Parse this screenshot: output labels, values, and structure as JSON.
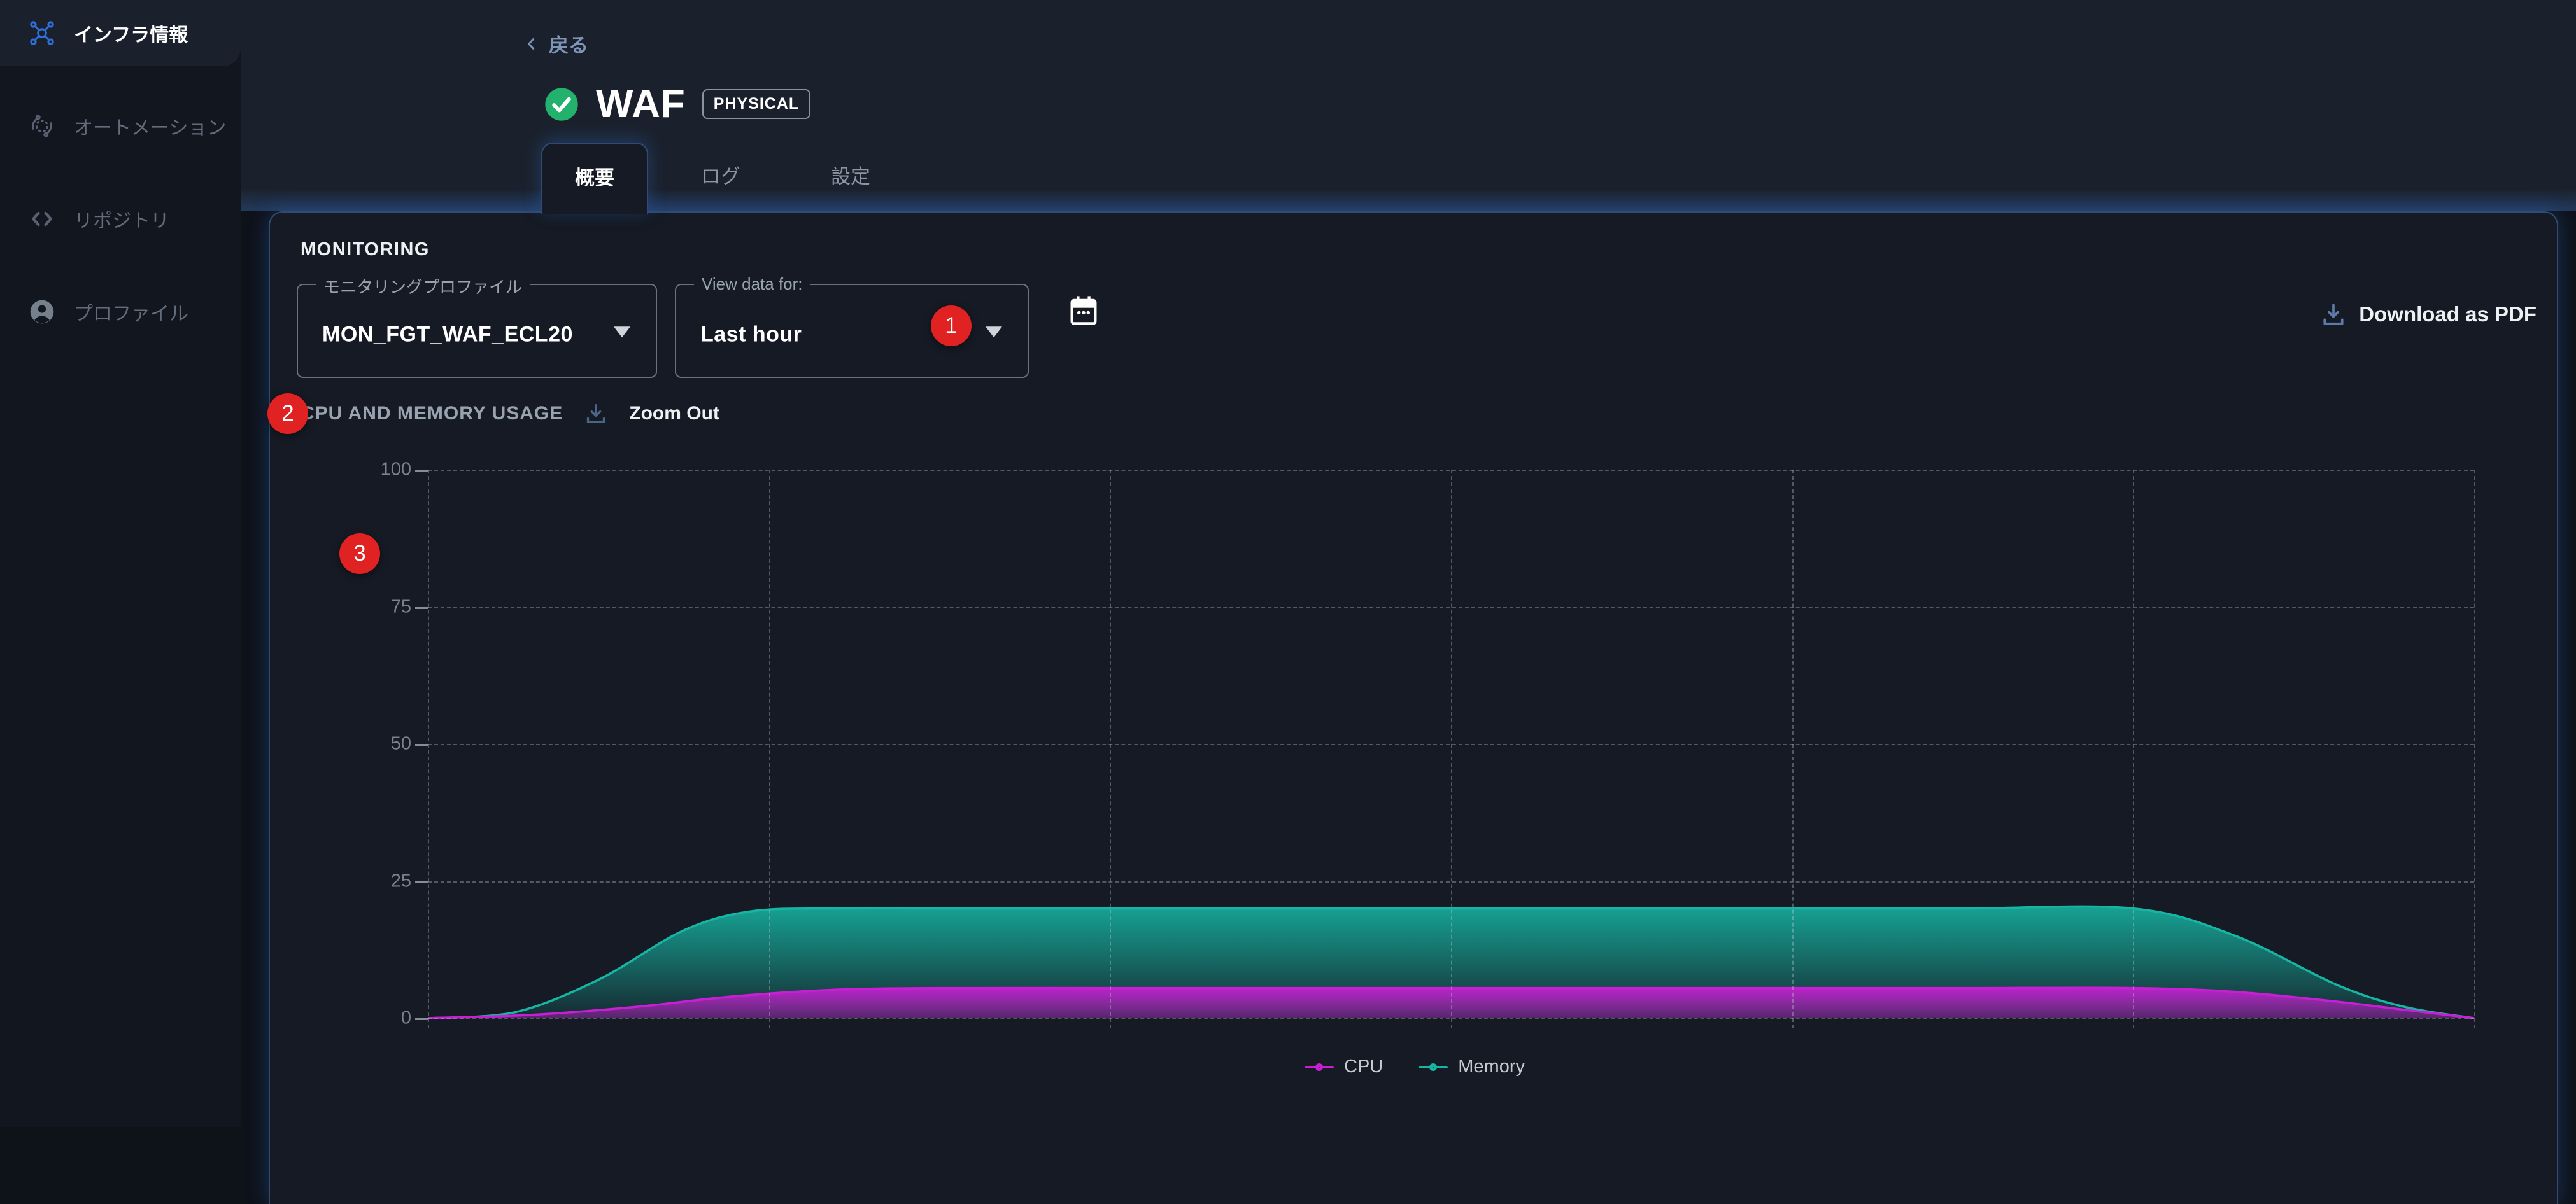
{
  "colors": {
    "badge-red": "#e02222",
    "ok-green": "#23b26d",
    "accent-blue": "#3d7bd9",
    "cpu-magenta": "#c91fd4",
    "memory-teal": "#17b5a3",
    "panel-bg": "#151a24",
    "header-bg": "#1b212c",
    "sidebar-bg": "#12161f"
  },
  "sidebar": {
    "items": [
      {
        "label": "インフラ情報",
        "icon": "network-icon",
        "active": true
      },
      {
        "label": "オートメーション",
        "icon": "automation-icon",
        "active": false
      },
      {
        "label": "リポジトリ",
        "icon": "code-brackets-icon",
        "active": false
      },
      {
        "label": "プロファイル",
        "icon": "user-icon",
        "active": false
      }
    ]
  },
  "header": {
    "back_label": "戻る",
    "title": "WAF",
    "status": "ok",
    "type_badge": "PHYSICAL",
    "tabs": [
      {
        "label": "概要",
        "active": true
      },
      {
        "label": "ログ",
        "active": false
      },
      {
        "label": "設定",
        "active": false
      }
    ]
  },
  "monitoring": {
    "section_label": "MONITORING",
    "profile_field": {
      "label": "モニタリングプロファイル",
      "value": "MON_FGT_WAF_ECL20"
    },
    "range_field": {
      "label": "View data for:",
      "value": "Last hour"
    },
    "download_pdf_label": "Download as PDF"
  },
  "chart_section": {
    "title": "CPU AND MEMORY USAGE",
    "zoom_out_label": "Zoom Out"
  },
  "annotations": {
    "badges": [
      {
        "label": "1"
      },
      {
        "label": "2"
      },
      {
        "label": "3"
      }
    ]
  },
  "chart_data": {
    "type": "area",
    "title": "CPU AND MEMORY USAGE",
    "x_range": [
      0,
      60
    ],
    "x_unit": "minutes (Last hour window; no x tick labels shown)",
    "ylim": [
      0,
      100
    ],
    "yticks": [
      0,
      25,
      50,
      75,
      100
    ],
    "x_gridline_count": 7,
    "grid": "dashed",
    "legend_position": "bottom",
    "legend_order": [
      "CPU",
      "Memory"
    ],
    "series": [
      {
        "name": "CPU",
        "color": "#c91fd4",
        "points": [
          [
            0,
            0
          ],
          [
            3,
            0.6
          ],
          [
            6,
            2
          ],
          [
            9,
            4
          ],
          [
            12,
            5.2
          ],
          [
            15,
            5.5
          ],
          [
            20,
            5.5
          ],
          [
            25,
            5.5
          ],
          [
            30,
            5.5
          ],
          [
            35,
            5.5
          ],
          [
            40,
            5.5
          ],
          [
            45,
            5.5
          ],
          [
            50,
            5.5
          ],
          [
            53,
            4.8
          ],
          [
            56,
            3
          ],
          [
            58,
            1.5
          ],
          [
            60,
            0
          ]
        ]
      },
      {
        "name": "Memory",
        "color": "#17b5a3",
        "points": [
          [
            0,
            0
          ],
          [
            2.5,
            1
          ],
          [
            5,
            7
          ],
          [
            7.5,
            16
          ],
          [
            9.5,
            19.5
          ],
          [
            12,
            20
          ],
          [
            15,
            20
          ],
          [
            20,
            20
          ],
          [
            25,
            20
          ],
          [
            30,
            20
          ],
          [
            35,
            20
          ],
          [
            40,
            20
          ],
          [
            45,
            20
          ],
          [
            50,
            20
          ],
          [
            53,
            15
          ],
          [
            56,
            6
          ],
          [
            58,
            2
          ],
          [
            60,
            0
          ]
        ]
      }
    ]
  }
}
